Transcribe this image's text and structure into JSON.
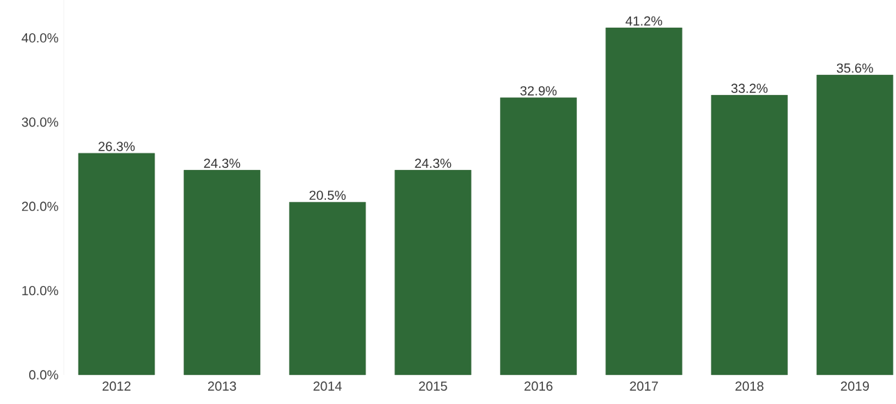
{
  "chart_data": {
    "type": "bar",
    "categories": [
      "2012",
      "2013",
      "2014",
      "2015",
      "2016",
      "2017",
      "2018",
      "2019"
    ],
    "values": [
      26.3,
      24.3,
      20.5,
      24.3,
      32.9,
      41.2,
      33.2,
      35.6
    ],
    "value_labels": [
      "26.3%",
      "24.3%",
      "20.5%",
      "24.3%",
      "32.9%",
      "41.2%",
      "33.2%",
      "35.6%"
    ],
    "color": "#2f6a37",
    "yticks": [
      {
        "value": 0,
        "label": "0.0%"
      },
      {
        "value": 10,
        "label": "10.0%"
      },
      {
        "value": 20,
        "label": "20.0%"
      },
      {
        "value": 30,
        "label": "30.0%"
      },
      {
        "value": 40,
        "label": "40.0%"
      }
    ],
    "ylim": [
      0,
      44.5
    ],
    "grid": false
  }
}
